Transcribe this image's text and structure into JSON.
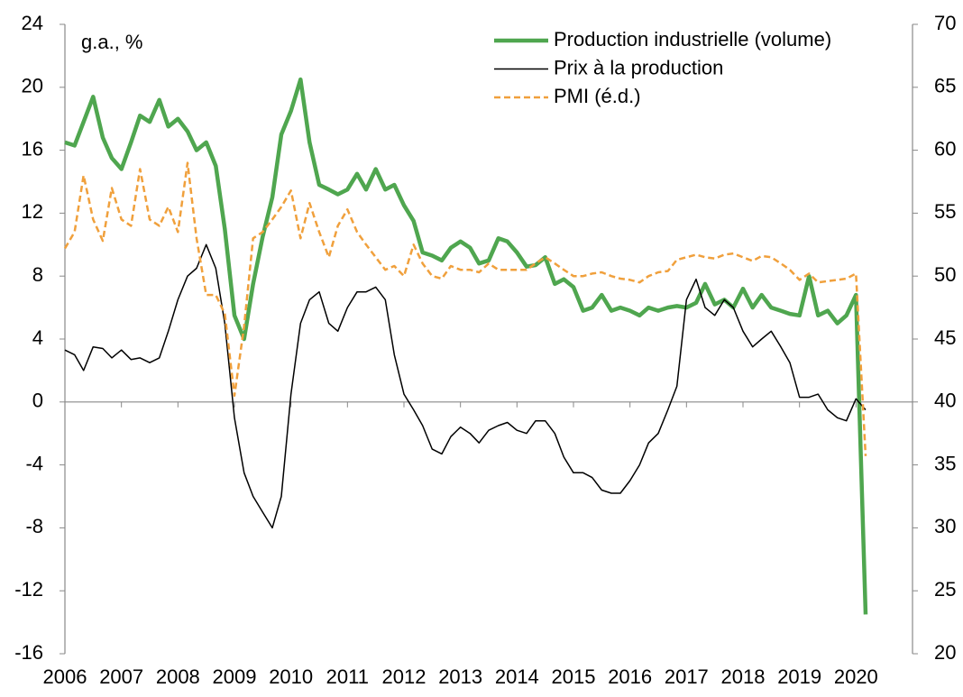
{
  "chart_data": {
    "type": "line",
    "annotation": "g.a., %",
    "x": [
      2006,
      2006.17,
      2006.33,
      2006.5,
      2006.67,
      2006.83,
      2007,
      2007.17,
      2007.33,
      2007.5,
      2007.67,
      2007.83,
      2008,
      2008.17,
      2008.33,
      2008.5,
      2008.67,
      2008.83,
      2009,
      2009.17,
      2009.33,
      2009.5,
      2009.67,
      2009.83,
      2010,
      2010.17,
      2010.33,
      2010.5,
      2010.67,
      2010.83,
      2011,
      2011.17,
      2011.33,
      2011.5,
      2011.67,
      2011.83,
      2012,
      2012.17,
      2012.33,
      2012.5,
      2012.67,
      2012.83,
      2013,
      2013.17,
      2013.33,
      2013.5,
      2013.67,
      2013.83,
      2014,
      2014.17,
      2014.33,
      2014.5,
      2014.67,
      2014.83,
      2015,
      2015.17,
      2015.33,
      2015.5,
      2015.67,
      2015.83,
      2016,
      2016.17,
      2016.33,
      2016.5,
      2016.67,
      2016.83,
      2017,
      2017.17,
      2017.33,
      2017.5,
      2017.67,
      2017.83,
      2018,
      2018.17,
      2018.33,
      2018.5,
      2018.67,
      2018.83,
      2019,
      2019.17,
      2019.33,
      2019.5,
      2019.67,
      2019.83,
      2020,
      2020.17
    ],
    "series": [
      {
        "name": "Production industrielle (volume)",
        "color": "#4fa64f",
        "axis": "y",
        "values": [
          16.5,
          16.3,
          17.8,
          19.4,
          16.8,
          15.5,
          14.8,
          16.5,
          18.2,
          17.8,
          19.2,
          17.5,
          18.0,
          17.2,
          16.0,
          16.5,
          15.0,
          11.0,
          5.5,
          4.0,
          7.5,
          10.5,
          13.0,
          17.0,
          18.5,
          20.5,
          16.5,
          13.8,
          13.5,
          13.2,
          13.5,
          14.5,
          13.5,
          14.8,
          13.5,
          13.8,
          12.5,
          11.5,
          9.5,
          9.3,
          9.0,
          9.8,
          10.2,
          9.8,
          8.8,
          9.0,
          10.4,
          10.2,
          9.5,
          8.6,
          8.7,
          9.2,
          7.5,
          7.8,
          7.3,
          5.8,
          6.0,
          6.8,
          5.8,
          6.0,
          5.8,
          5.5,
          6.0,
          5.8,
          6.0,
          6.1,
          6.0,
          6.3,
          7.5,
          6.2,
          6.5,
          6.0,
          7.2,
          6.0,
          6.8,
          6.0,
          5.8,
          5.6,
          5.5,
          8.0,
          5.5,
          5.8,
          5.0,
          5.5,
          6.8,
          -13.5
        ]
      },
      {
        "name": "Prix à la production",
        "color": "#000000",
        "axis": "y",
        "values": [
          3.3,
          3.0,
          2.0,
          3.5,
          3.4,
          2.8,
          3.3,
          2.7,
          2.8,
          2.5,
          2.8,
          4.5,
          6.5,
          8.0,
          8.5,
          10.0,
          8.5,
          5.0,
          -1.0,
          -4.5,
          -6.0,
          -7.0,
          -8.0,
          -6.0,
          0.5,
          5.0,
          6.5,
          7.0,
          5.0,
          4.5,
          6.0,
          7.0,
          7.0,
          7.3,
          6.5,
          3.0,
          0.5,
          -0.5,
          -1.5,
          -3.0,
          -3.3,
          -2.2,
          -1.6,
          -2.0,
          -2.6,
          -1.8,
          -1.5,
          -1.3,
          -1.8,
          -2.0,
          -1.2,
          -1.2,
          -2.0,
          -3.5,
          -4.5,
          -4.5,
          -4.8,
          -5.6,
          -5.8,
          -5.8,
          -5.0,
          -4.0,
          -2.6,
          -2.0,
          -0.5,
          1.0,
          6.5,
          7.8,
          6.0,
          5.5,
          6.5,
          6.0,
          4.5,
          3.5,
          4.0,
          4.5,
          3.5,
          2.5,
          0.3,
          0.3,
          0.5,
          -0.5,
          -1.0,
          -1.2,
          0.2,
          -0.5
        ]
      },
      {
        "name": "PMI (é.d.)",
        "color": "#f0a03c",
        "axis": "y2",
        "dashed": true,
        "values": [
          52.2,
          53.5,
          58,
          54.5,
          52.8,
          57,
          54.5,
          54,
          58.5,
          54.5,
          54,
          55.5,
          53.5,
          59,
          53,
          48.5,
          48.5,
          47,
          40.5,
          46,
          53,
          53.5,
          54.5,
          55.5,
          56.8,
          53,
          55.8,
          53.5,
          51.5,
          54,
          55.3,
          53.5,
          52.5,
          51.5,
          50.5,
          50.8,
          50.0,
          52.5,
          51,
          50,
          49.8,
          50.8,
          50.5,
          50.5,
          50.3,
          51,
          50.5,
          50.5,
          50.5,
          50.5,
          51,
          51.5,
          51,
          50.5,
          50,
          50,
          50.2,
          50.3,
          50,
          49.8,
          49.7,
          49.5,
          50,
          50.3,
          50.4,
          51.3,
          51.5,
          51.7,
          51.5,
          51.4,
          51.7,
          51.8,
          51.5,
          51.2,
          51.6,
          51.5,
          51,
          50.5,
          49.7,
          50.2,
          49.5,
          49.6,
          49.7,
          49.8,
          50.2,
          35.7
        ]
      }
    ],
    "xlim": [
      2006,
      2021
    ],
    "xticks": [
      2006,
      2007,
      2008,
      2009,
      2010,
      2011,
      2012,
      2013,
      2014,
      2015,
      2016,
      2017,
      2018,
      2019,
      2020
    ],
    "ylim": [
      -16,
      24
    ],
    "yticks": [
      -16,
      -12,
      -8,
      -4,
      0,
      4,
      8,
      12,
      16,
      20,
      24
    ],
    "y2lim": [
      20,
      70
    ],
    "y2ticks": [
      20,
      25,
      30,
      35,
      40,
      45,
      50,
      55,
      60,
      65,
      70
    ],
    "legend": "top-right"
  }
}
